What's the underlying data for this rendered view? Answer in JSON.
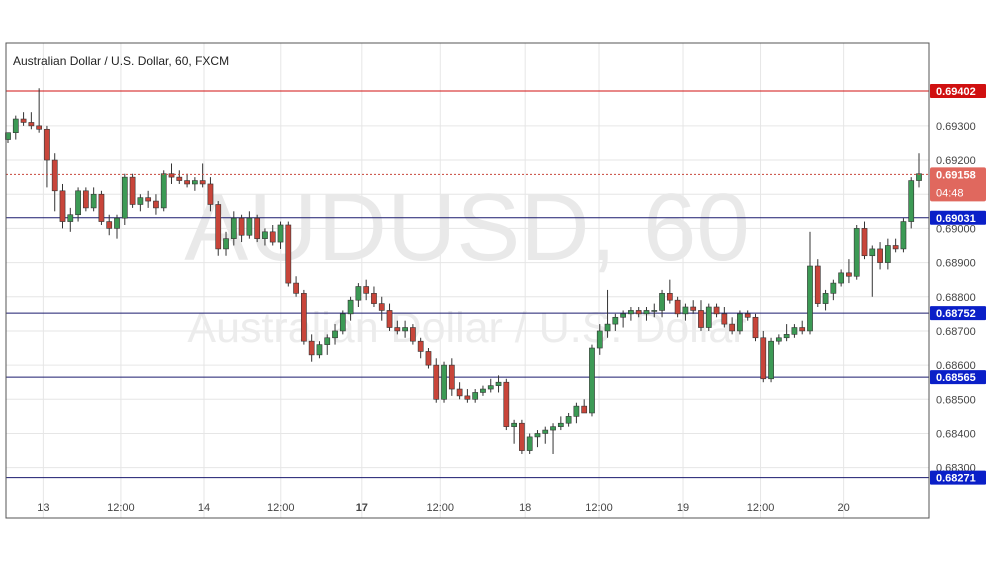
{
  "chart_title": "Australian Dollar / U.S. Dollar, 60, FXCM",
  "watermark": {
    "line1": "AUDUSD, 60",
    "line2": "Australian Dollar / U.S. Dollar"
  },
  "colors": {
    "up": "#3c9a55",
    "down": "#c8453a",
    "grid": "#e6e6e6",
    "resistance": "#d01010",
    "level": "#1a1a6e",
    "price_tag": "#e0685e"
  },
  "current_price": {
    "price": "0.69158",
    "countdown": "04:48"
  },
  "chart_data": {
    "type": "candlestick",
    "title": "Australian Dollar / U.S. Dollar, 60, FXCM",
    "ylim": [
      0.6822,
      0.6956
    ],
    "price_ticks": [
      "0.69300",
      "0.69200",
      "0.69100",
      "0.69000",
      "0.68900",
      "0.68800",
      "0.68700",
      "0.68600",
      "0.68500",
      "0.68400",
      "0.68300"
    ],
    "time_labels": [
      "13",
      "12:00",
      "14",
      "12:00",
      "17",
      "12:00",
      "18",
      "12:00",
      "19",
      "12:00",
      "20"
    ],
    "horizontal_levels": [
      {
        "price": 0.69402,
        "label": "0.69402",
        "kind": "resistance"
      },
      {
        "price": 0.69031,
        "label": "0.69031",
        "kind": "level"
      },
      {
        "price": 0.68752,
        "label": "0.68752",
        "kind": "level"
      },
      {
        "price": 0.68565,
        "label": "0.68565",
        "kind": "level"
      },
      {
        "price": 0.68271,
        "label": "0.68271",
        "kind": "level"
      }
    ],
    "candles": [
      [
        0.6926,
        0.6928,
        0.6925,
        0.6928
      ],
      [
        0.6928,
        0.6933,
        0.6926,
        0.6932
      ],
      [
        0.6932,
        0.6934,
        0.693,
        0.6931
      ],
      [
        0.6931,
        0.6934,
        0.6929,
        0.693
      ],
      [
        0.693,
        0.6941,
        0.6928,
        0.6929
      ],
      [
        0.6929,
        0.693,
        0.6912,
        0.692
      ],
      [
        0.692,
        0.6922,
        0.6905,
        0.6911
      ],
      [
        0.6911,
        0.6913,
        0.69,
        0.6902
      ],
      [
        0.6902,
        0.6906,
        0.6899,
        0.6904
      ],
      [
        0.6904,
        0.6912,
        0.6902,
        0.6911
      ],
      [
        0.6911,
        0.6912,
        0.6905,
        0.6906
      ],
      [
        0.6906,
        0.6912,
        0.6905,
        0.691
      ],
      [
        0.691,
        0.6911,
        0.6901,
        0.6902
      ],
      [
        0.6902,
        0.6904,
        0.6898,
        0.69
      ],
      [
        0.69,
        0.6904,
        0.6897,
        0.6903
      ],
      [
        0.6903,
        0.6916,
        0.6901,
        0.6915
      ],
      [
        0.6915,
        0.6916,
        0.6906,
        0.6907
      ],
      [
        0.6907,
        0.691,
        0.6905,
        0.6909
      ],
      [
        0.6909,
        0.6911,
        0.6906,
        0.6908
      ],
      [
        0.6908,
        0.691,
        0.6904,
        0.6906
      ],
      [
        0.6906,
        0.6917,
        0.6905,
        0.6916
      ],
      [
        0.6916,
        0.6919,
        0.6913,
        0.6915
      ],
      [
        0.6915,
        0.6917,
        0.6913,
        0.6914
      ],
      [
        0.6914,
        0.6916,
        0.6912,
        0.6913
      ],
      [
        0.6913,
        0.6915,
        0.6911,
        0.6914
      ],
      [
        0.6914,
        0.6919,
        0.6912,
        0.6913
      ],
      [
        0.6913,
        0.6915,
        0.6905,
        0.6907
      ],
      [
        0.6907,
        0.6908,
        0.6892,
        0.6894
      ],
      [
        0.6894,
        0.6899,
        0.6892,
        0.6897
      ],
      [
        0.6897,
        0.6905,
        0.6895,
        0.6903
      ],
      [
        0.6903,
        0.6904,
        0.6896,
        0.6898
      ],
      [
        0.6898,
        0.6905,
        0.6897,
        0.6903
      ],
      [
        0.6903,
        0.6904,
        0.6896,
        0.6897
      ],
      [
        0.6897,
        0.69,
        0.6895,
        0.6899
      ],
      [
        0.6899,
        0.6901,
        0.6895,
        0.6896
      ],
      [
        0.6896,
        0.6902,
        0.6894,
        0.6901
      ],
      [
        0.6901,
        0.6902,
        0.6883,
        0.6884
      ],
      [
        0.6884,
        0.6886,
        0.688,
        0.6881
      ],
      [
        0.6881,
        0.6882,
        0.6866,
        0.6867
      ],
      [
        0.6867,
        0.6869,
        0.6861,
        0.6863
      ],
      [
        0.6863,
        0.6867,
        0.6862,
        0.6866
      ],
      [
        0.6866,
        0.6869,
        0.6863,
        0.6868
      ],
      [
        0.6868,
        0.6872,
        0.6866,
        0.687
      ],
      [
        0.687,
        0.6876,
        0.6869,
        0.6875
      ],
      [
        0.6875,
        0.688,
        0.6873,
        0.6879
      ],
      [
        0.6879,
        0.6884,
        0.6877,
        0.6883
      ],
      [
        0.6883,
        0.6885,
        0.6879,
        0.6881
      ],
      [
        0.6881,
        0.6883,
        0.6877,
        0.6878
      ],
      [
        0.6878,
        0.688,
        0.6873,
        0.6876
      ],
      [
        0.6876,
        0.6878,
        0.687,
        0.6871
      ],
      [
        0.6871,
        0.6873,
        0.6869,
        0.687
      ],
      [
        0.687,
        0.6873,
        0.6868,
        0.6871
      ],
      [
        0.6871,
        0.6872,
        0.6866,
        0.6867
      ],
      [
        0.6867,
        0.6868,
        0.6862,
        0.6864
      ],
      [
        0.6864,
        0.6865,
        0.6859,
        0.686
      ],
      [
        0.686,
        0.6862,
        0.6849,
        0.685
      ],
      [
        0.685,
        0.6861,
        0.6849,
        0.686
      ],
      [
        0.686,
        0.6862,
        0.6851,
        0.6853
      ],
      [
        0.6853,
        0.6855,
        0.685,
        0.6851
      ],
      [
        0.6851,
        0.6853,
        0.6849,
        0.685
      ],
      [
        0.685,
        0.6853,
        0.6849,
        0.6852
      ],
      [
        0.6852,
        0.6854,
        0.6851,
        0.6853
      ],
      [
        0.6853,
        0.6856,
        0.6852,
        0.6854
      ],
      [
        0.6854,
        0.6857,
        0.6852,
        0.6855
      ],
      [
        0.6855,
        0.6856,
        0.6841,
        0.6842
      ],
      [
        0.6842,
        0.6844,
        0.6837,
        0.6843
      ],
      [
        0.6843,
        0.6844,
        0.6834,
        0.6835
      ],
      [
        0.6835,
        0.684,
        0.6834,
        0.6839
      ],
      [
        0.6839,
        0.6841,
        0.6836,
        0.684
      ],
      [
        0.684,
        0.6842,
        0.6837,
        0.6841
      ],
      [
        0.6841,
        0.6843,
        0.6834,
        0.6842
      ],
      [
        0.6842,
        0.6845,
        0.6841,
        0.6843
      ],
      [
        0.6843,
        0.6846,
        0.6842,
        0.6845
      ],
      [
        0.6845,
        0.6849,
        0.6843,
        0.6848
      ],
      [
        0.6848,
        0.685,
        0.6846,
        0.6846
      ],
      [
        0.6846,
        0.6866,
        0.6845,
        0.6865
      ],
      [
        0.6865,
        0.6872,
        0.6863,
        0.687
      ],
      [
        0.687,
        0.6882,
        0.6868,
        0.6872
      ],
      [
        0.6872,
        0.6875,
        0.687,
        0.6874
      ],
      [
        0.6874,
        0.6876,
        0.6871,
        0.6875
      ],
      [
        0.6875,
        0.6877,
        0.6873,
        0.6876
      ],
      [
        0.6876,
        0.6877,
        0.6874,
        0.6875
      ],
      [
        0.6875,
        0.6877,
        0.6873,
        0.6876
      ],
      [
        0.6876,
        0.6878,
        0.6874,
        0.6876
      ],
      [
        0.6876,
        0.6882,
        0.6874,
        0.6881
      ],
      [
        0.6881,
        0.6885,
        0.6878,
        0.6879
      ],
      [
        0.6879,
        0.688,
        0.6874,
        0.6875
      ],
      [
        0.6875,
        0.6878,
        0.6873,
        0.6877
      ],
      [
        0.6877,
        0.6879,
        0.6875,
        0.6876
      ],
      [
        0.6876,
        0.6879,
        0.687,
        0.6871
      ],
      [
        0.6871,
        0.6878,
        0.687,
        0.6877
      ],
      [
        0.6877,
        0.6878,
        0.6874,
        0.6875
      ],
      [
        0.6875,
        0.6877,
        0.6871,
        0.6872
      ],
      [
        0.6872,
        0.6874,
        0.6869,
        0.687
      ],
      [
        0.687,
        0.6876,
        0.6869,
        0.6875
      ],
      [
        0.6875,
        0.6876,
        0.6873,
        0.6874
      ],
      [
        0.6874,
        0.6875,
        0.6867,
        0.6868
      ],
      [
        0.6868,
        0.687,
        0.6855,
        0.6856
      ],
      [
        0.6856,
        0.6868,
        0.6855,
        0.6867
      ],
      [
        0.6867,
        0.6869,
        0.6866,
        0.6868
      ],
      [
        0.6868,
        0.6872,
        0.6867,
        0.6869
      ],
      [
        0.6869,
        0.6872,
        0.6868,
        0.6871
      ],
      [
        0.6871,
        0.6873,
        0.6869,
        0.687
      ],
      [
        0.687,
        0.6899,
        0.6869,
        0.6889
      ],
      [
        0.6889,
        0.6891,
        0.6877,
        0.6878
      ],
      [
        0.6878,
        0.6882,
        0.6876,
        0.6881
      ],
      [
        0.6881,
        0.6885,
        0.6879,
        0.6884
      ],
      [
        0.6884,
        0.6888,
        0.6883,
        0.6887
      ],
      [
        0.6887,
        0.6891,
        0.6884,
        0.6886
      ],
      [
        0.6886,
        0.6901,
        0.6885,
        0.69
      ],
      [
        0.69,
        0.6902,
        0.6891,
        0.6892
      ],
      [
        0.6892,
        0.6895,
        0.688,
        0.6894
      ],
      [
        0.6894,
        0.6896,
        0.6888,
        0.689
      ],
      [
        0.689,
        0.6897,
        0.6888,
        0.6895
      ],
      [
        0.6895,
        0.6897,
        0.6893,
        0.6894
      ],
      [
        0.6894,
        0.6903,
        0.6893,
        0.6902
      ],
      [
        0.6902,
        0.6915,
        0.69,
        0.6914
      ],
      [
        0.6914,
        0.6922,
        0.6912,
        0.6916
      ]
    ]
  }
}
